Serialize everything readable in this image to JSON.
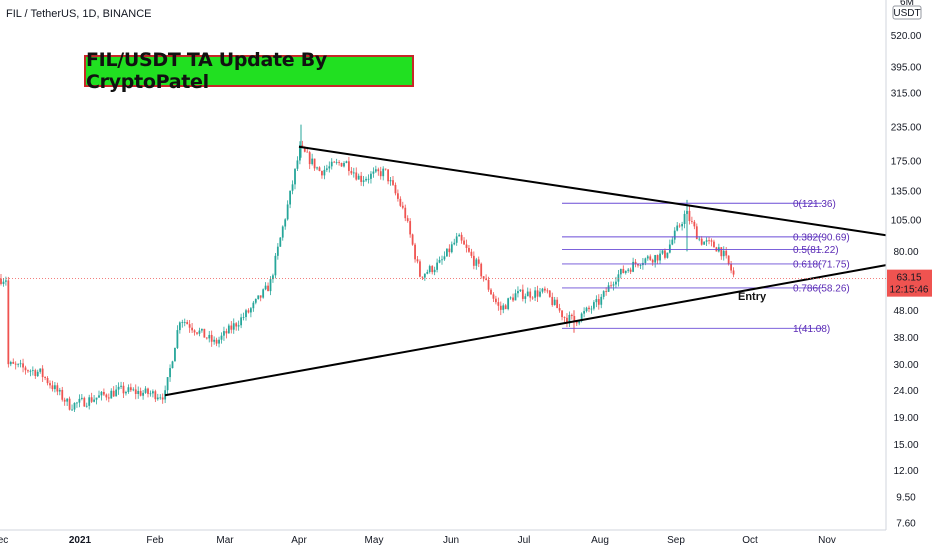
{
  "header": {
    "symbol_line": "FIL / TetherUS, 1D, BINANCE",
    "title_banner": "FIL/USDT TA Update By CryptoPatel"
  },
  "colors": {
    "up": "#26a69a",
    "down": "#ef5350",
    "fib": "#6a4bd6",
    "trendline": "#000000",
    "price_tag": "#ef5350",
    "banner_bg": "#21e021",
    "banner_border": "#c62828"
  },
  "axis": {
    "unit_label": "USDT",
    "y_ticks": [
      "520.00",
      "395.00",
      "315.00",
      "235.00",
      "175.00",
      "135.00",
      "105.00",
      "80.00",
      "63.15",
      "48.00",
      "38.00",
      "30.00",
      "24.00",
      "19.00",
      "15.00",
      "12.00",
      "9.50",
      "7.60"
    ],
    "x_ticks": [
      "ec",
      "2021",
      "Feb",
      "Mar",
      "Apr",
      "May",
      "Jun",
      "Jul",
      "Aug",
      "Sep",
      "Oct",
      "Nov"
    ],
    "current_price": "63.15",
    "countdown": "12:15:46",
    "top_partial": "6M"
  },
  "chart_data": {
    "type": "candlestick",
    "title": "FIL/USDT TA Update By CryptoPatel",
    "symbol": "FIL / TetherUS, 1D, BINANCE",
    "y_scale": "log",
    "ylim": [
      7.0,
      620
    ],
    "x_axis_labels": [
      "Dec",
      "2021",
      "Feb",
      "Mar",
      "Apr",
      "May",
      "Jun",
      "Jul",
      "Aug",
      "Sep",
      "Oct",
      "Nov"
    ],
    "current_price": 63.15,
    "fibonacci": [
      {
        "level": "0",
        "price": 121.36,
        "label": "0(121.36)"
      },
      {
        "level": "0.382",
        "price": 90.69,
        "label": "0.382(90.69)"
      },
      {
        "level": "0.5",
        "price": 81.22,
        "label": "0.5(81.22)"
      },
      {
        "level": "0.618",
        "price": 71.75,
        "label": "0.618(71.75)"
      },
      {
        "level": "0.786",
        "price": 58.26,
        "label": "0.786(58.26)"
      },
      {
        "level": "1",
        "price": 41.08,
        "label": "1(41.08)"
      }
    ],
    "annotations": [
      {
        "text": "Entry",
        "price": 52
      }
    ],
    "trendlines": [
      {
        "name": "resistance",
        "from": [
          "Apr",
          198
        ],
        "to": [
          "Oct",
          92
        ]
      },
      {
        "name": "support",
        "from": [
          "Feb",
          23
        ],
        "to": [
          "Oct",
          71
        ]
      }
    ],
    "price_path": [
      {
        "t": "Dec",
        "p": 30
      },
      {
        "t": "2021",
        "p": 22
      },
      {
        "t": "Feb",
        "p": 24
      },
      {
        "t": "Mar",
        "p": 40
      },
      {
        "t": "Apr",
        "p": 200
      },
      {
        "t": "May",
        "p": 160
      },
      {
        "t": "Jun",
        "p": 80
      },
      {
        "t": "Jul",
        "p": 55
      },
      {
        "t": "Aug",
        "p": 65
      },
      {
        "t": "Sep",
        "p": 95
      },
      {
        "t": "Sep-end",
        "p": 63.15
      }
    ]
  }
}
